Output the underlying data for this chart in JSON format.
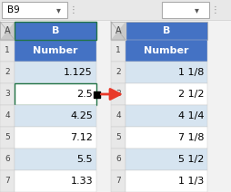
{
  "toolbar_text": "B9",
  "col_header_color": "#4472C4",
  "col_header_text_color": "#FFFFFF",
  "row_bg_colors": [
    "#D6E4F0",
    "#FFFFFF",
    "#D6E4F0",
    "#FFFFFF",
    "#D6E4F0",
    "#FFFFFF"
  ],
  "col_label": "Number",
  "left_decimals": [
    "1.125",
    "2.5",
    "4.25",
    "7.12",
    "5.5",
    "1.33"
  ],
  "right_fractions": [
    "1 1/8",
    "2 1/2",
    "4 1/4",
    "7 1/8",
    "5 1/2",
    "1 1/3"
  ],
  "highlighted_row": 2,
  "arrow_color": "#E8392A",
  "bg_color": "#F2F2F2",
  "toolbar_color": "#E8E8E8",
  "cell_select_color": "#217346",
  "row_num_color": "#E8E8E8",
  "grid_line_color": "#C8C8C8"
}
